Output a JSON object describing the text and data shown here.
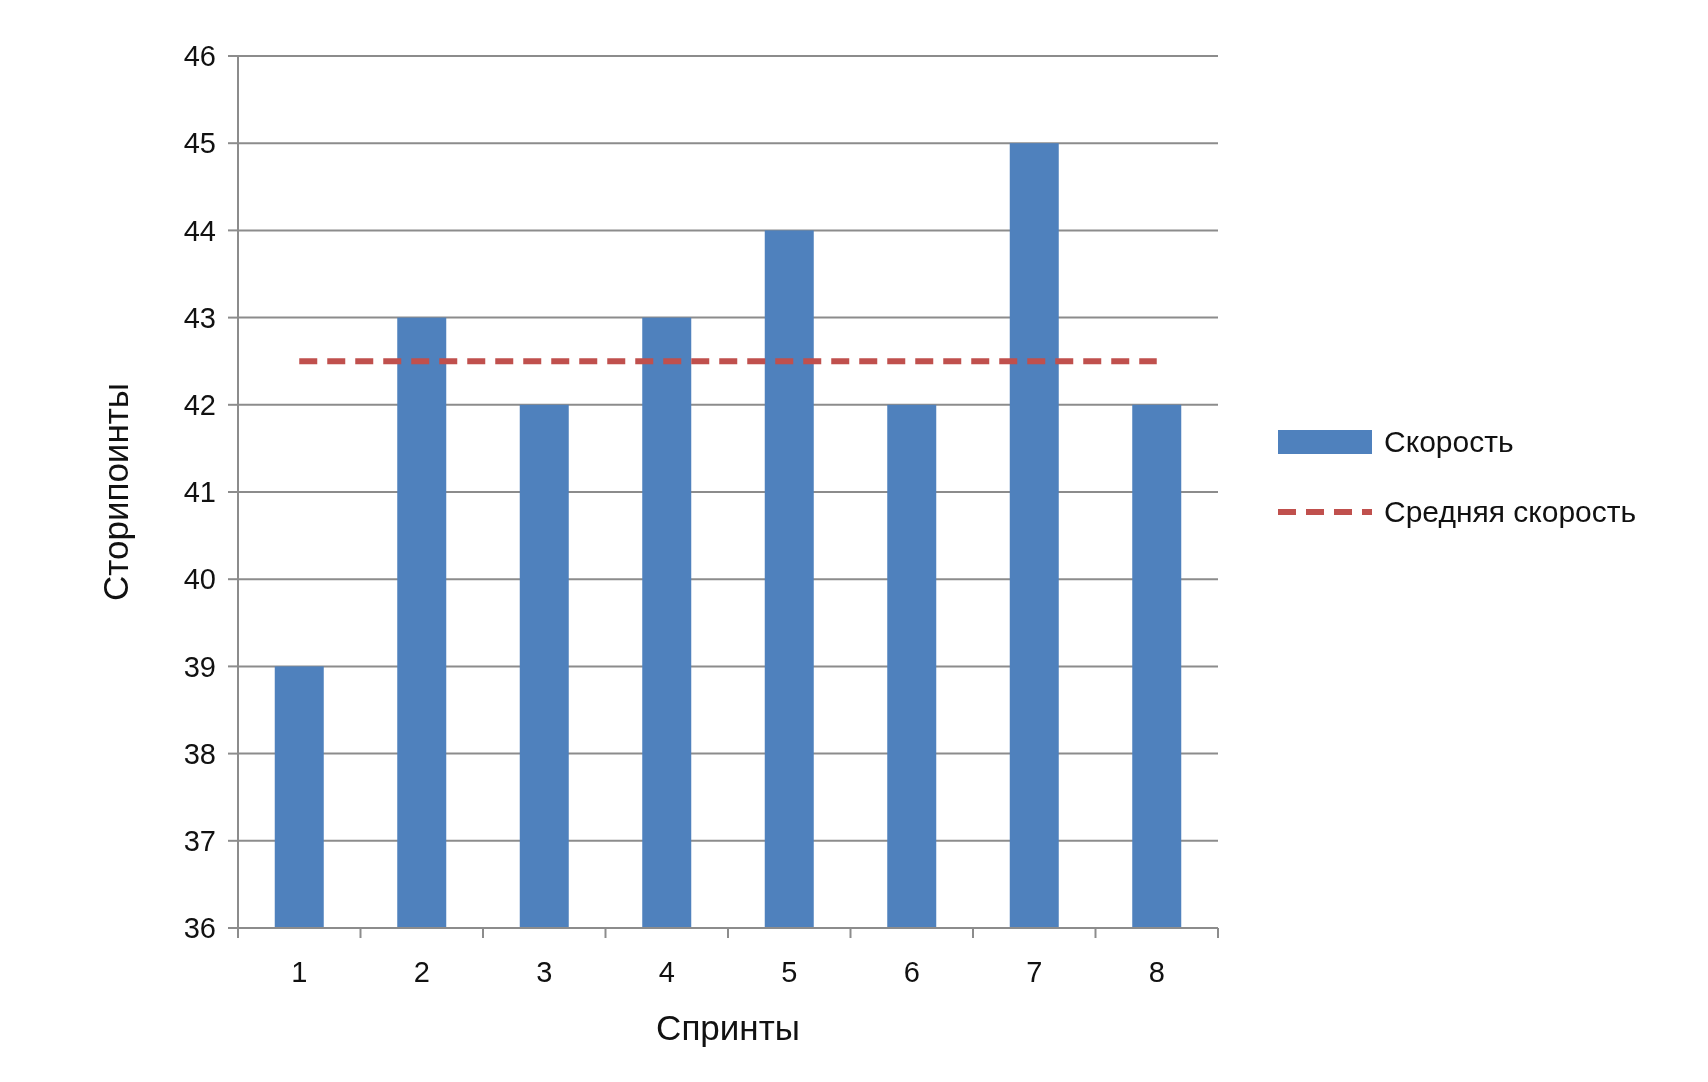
{
  "chart_data": {
    "type": "bar",
    "xlabel": "Спринты",
    "ylabel": "Сторипоинты",
    "categories": [
      "1",
      "2",
      "3",
      "4",
      "5",
      "6",
      "7",
      "8"
    ],
    "series": [
      {
        "name": "Скорость",
        "color": "#4f81bd",
        "values": [
          39,
          43,
          42,
          43,
          44,
          42,
          45,
          42
        ]
      },
      {
        "name": "Средняя скорость",
        "type": "line",
        "line_style": "dashed",
        "color": "#c0504d",
        "values": [
          42.5,
          42.5,
          42.5,
          42.5,
          42.5,
          42.5,
          42.5,
          42.5
        ]
      }
    ],
    "ylim": [
      36,
      46
    ],
    "yticks": [
      36,
      37,
      38,
      39,
      40,
      41,
      42,
      43,
      44,
      45,
      46
    ],
    "grid": "y",
    "legend": "right"
  }
}
